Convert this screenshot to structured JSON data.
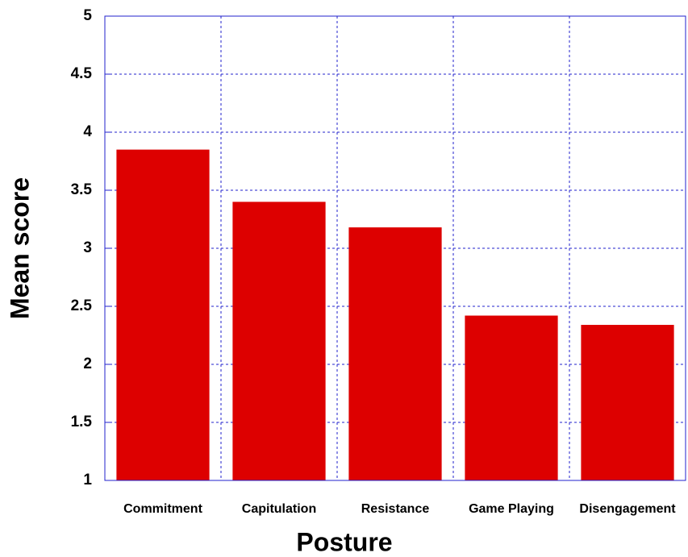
{
  "chart_data": {
    "type": "bar",
    "x_label": "Posture",
    "y_label": "Mean score",
    "categories": [
      "Commitment",
      "Capitulation",
      "Resistance",
      "Game Playing",
      "Disengagement"
    ],
    "values": [
      3.85,
      3.4,
      3.18,
      2.42,
      2.34
    ],
    "color": "#dd0000",
    "ylim": [
      1,
      5
    ],
    "yticks": [
      1,
      1.5,
      2,
      2.5,
      3,
      3.5,
      4,
      4.5,
      5
    ],
    "grid": true
  }
}
